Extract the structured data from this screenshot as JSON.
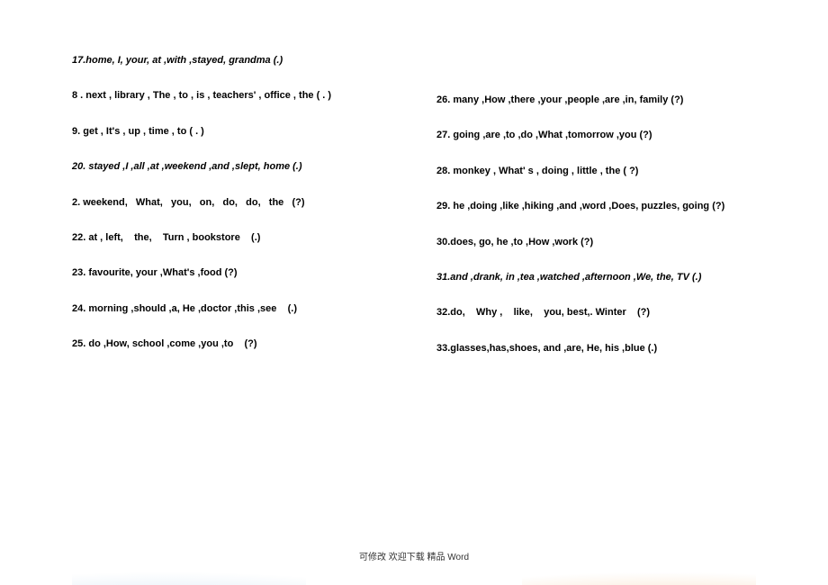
{
  "underline": "__________________________________________________",
  "leftItems": [
    {
      "text": "17.home, I, your, at ,with ,stayed, grandma (.)",
      "italic": true
    },
    {
      "text": "8 . next , library , The , to , is , teachers' , office , the ( . )"
    },
    {
      "text": "9. get , It's , up , time , to ( . )"
    },
    {
      "text": "20. stayed ,I ,all ,at ,weekend ,and ,slept, home (.)",
      "italic": true
    },
    {
      "text": "2. weekend,   What,   you,   on,   do,   do,   the   (?)"
    },
    {
      "text": "22. at , left,    the,    Turn , bookstore    (.)"
    },
    {
      "text": "23. favourite, your ,What's ,food (?)"
    },
    {
      "text": "24. morning ,should ,a, He ,doctor ,this ,see    (.)"
    },
    {
      "text": "25. do ,How, school ,come ,you ,to    (?)",
      "noLine": true
    }
  ],
  "rightItems": [
    {
      "text": "",
      "topLine": true
    },
    {
      "text": "26. many ,How ,there ,your ,people ,are ,in, family (?)"
    },
    {
      "text": "27. going ,are ,to ,do ,What ,tomorrow ,you (?)"
    },
    {
      "text": "28. monkey , What' s , doing , little , the ( ?)"
    },
    {
      "text": "29. he ,doing ,like ,hiking ,and ,word ,Does, puzzles, going (?)"
    },
    {
      "text": "30.does, go, he ,to ,How ,work (?)"
    },
    {
      "text": "31.and ,drank, in ,tea ,watched ,afternoon ,We, the, TV (.)",
      "italic": true
    },
    {
      "text": "32.do,    Why ,    like,    you, best,. Winter    (?)"
    },
    {
      "text": "33.glasses,has,shoes, and ,are, He, his ,blue (.)"
    }
  ],
  "footer": "可修改    欢迎下载   精品    Word"
}
